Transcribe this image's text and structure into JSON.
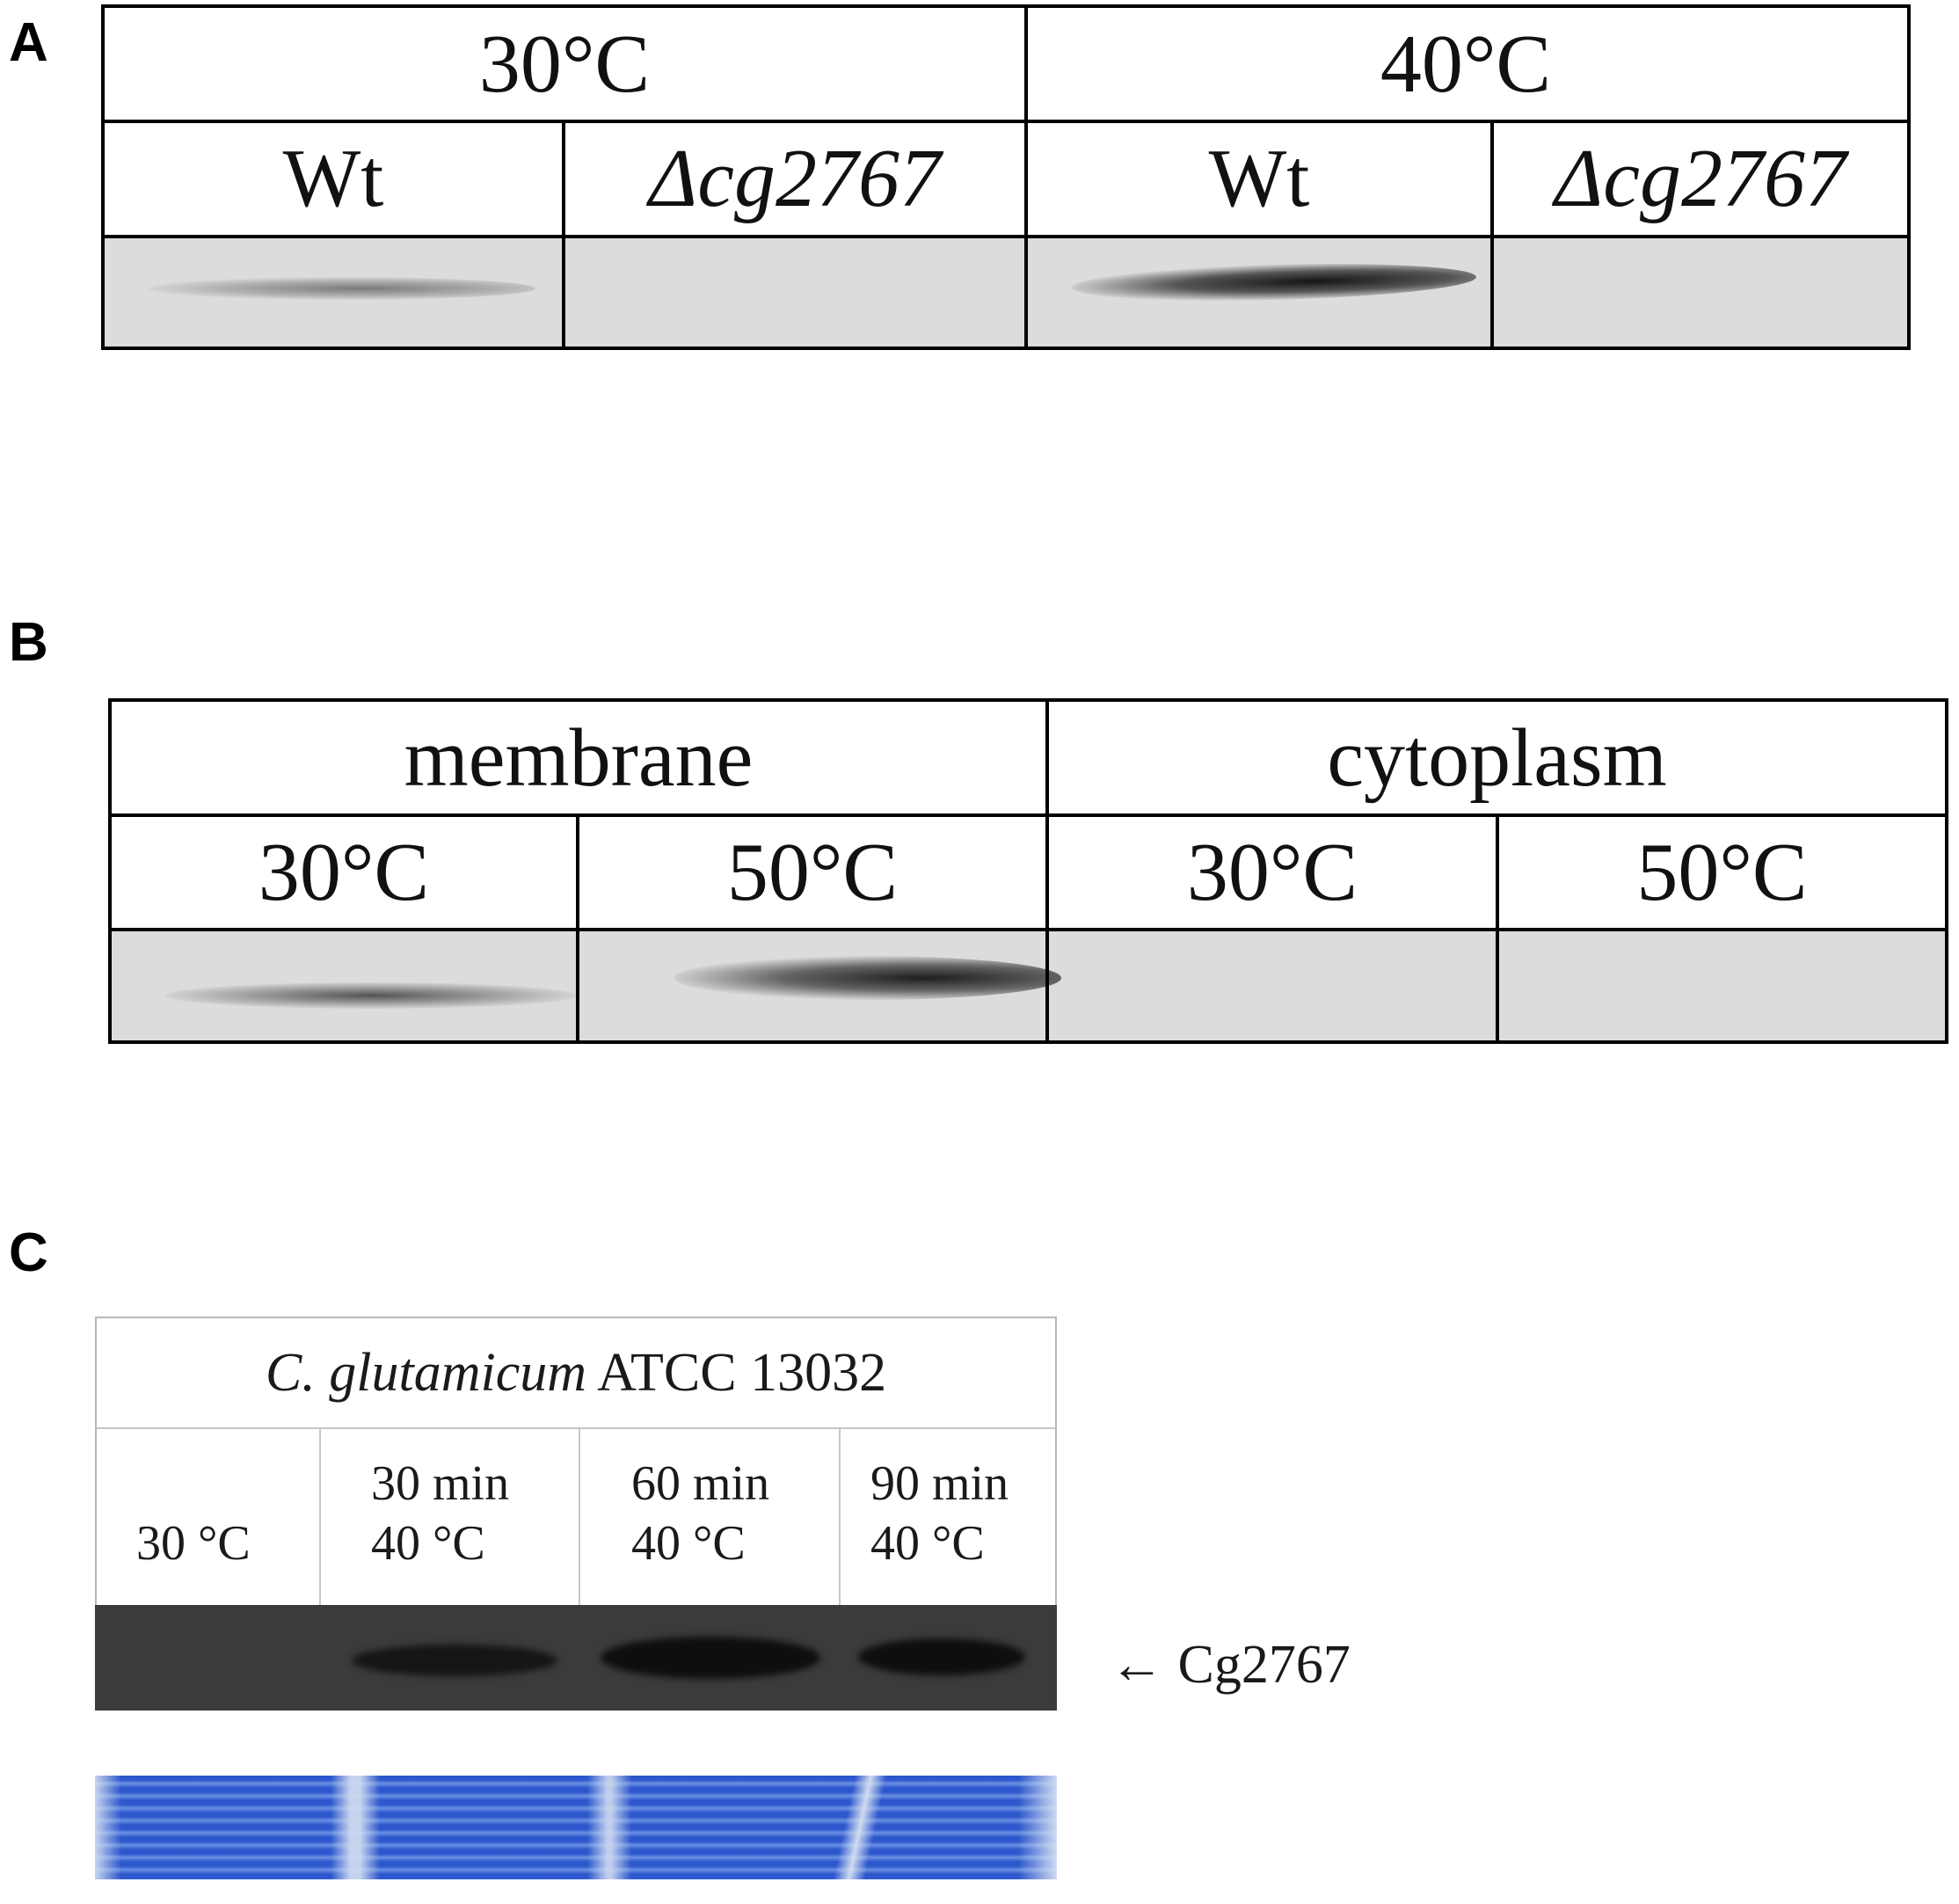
{
  "panels": {
    "a": {
      "letter": "A",
      "group_headers": [
        "30°C",
        "40°C"
      ],
      "lane_labels": [
        "Wt",
        "Δcg2767",
        "Wt",
        "Δcg2767"
      ]
    },
    "b": {
      "letter": "B",
      "group_headers": [
        "membrane",
        "cytoplasm"
      ],
      "lane_labels": [
        "30°C",
        "50°C",
        "30°C",
        "50°C"
      ]
    },
    "c": {
      "letter": "C",
      "strain_italic": "C. glutamicum",
      "strain_rest": " ATCC 13032",
      "lanes": [
        {
          "line1": "",
          "line2": "30 °C"
        },
        {
          "line1": "30 min",
          "line2": "40 °C"
        },
        {
          "line1": "60 min",
          "line2": "40 °C"
        },
        {
          "line1": "90 min",
          "line2": "40 °C"
        }
      ],
      "band_label": "← Cg2767"
    }
  },
  "colors": {
    "blot_gray": "#dcdcdc",
    "blot_dark": "#3b3b3b",
    "coomassie": "#2f5fd0"
  }
}
